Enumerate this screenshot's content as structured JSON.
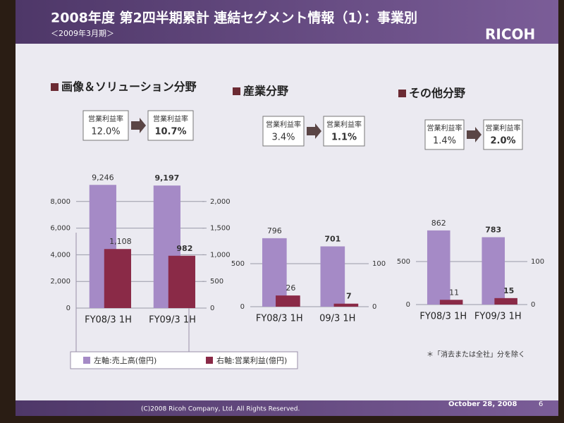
{
  "header": {
    "title": "2008年度 第2四半期累計 連結セグメント情報（1）：事業別",
    "subtitle": "＜2009年3月期＞",
    "logo": "RICOH"
  },
  "chart_data": [
    {
      "type": "bar",
      "title": "画像＆ソリューション分野",
      "margin": {
        "label": "営業利益率",
        "before": "12.0%",
        "after": "10.7%"
      },
      "categories": [
        "FY08/3 1H",
        "FY09/3 1H"
      ],
      "series": [
        {
          "name": "左軸:売上高(億円)",
          "color": "#a58ac6",
          "values": [
            9246,
            9197
          ],
          "value_labels": [
            "9,246",
            "9,197"
          ]
        },
        {
          "name": "右軸:営業利益(億円)",
          "color": "#8a2a47",
          "axis": "y2",
          "values": [
            1108,
            982
          ],
          "value_labels": [
            "1,108",
            "982"
          ]
        }
      ],
      "ylim": [
        0,
        10000
      ],
      "yticks": [
        0,
        {
          "value": 2000,
          "label": "2,000"
        },
        {
          "value": 4000,
          "label": "4,000"
        },
        {
          "value": 6000,
          "label": "6,000"
        },
        {
          "value": 8000,
          "label": "8,000"
        }
      ],
      "y2lim": [
        0,
        2500
      ],
      "y2ticks": [
        0,
        500,
        {
          "value": 1000,
          "label": "1,000"
        },
        {
          "value": 1500,
          "label": "1,500"
        },
        {
          "value": 2000,
          "label": "2,000"
        }
      ],
      "grid": true
    },
    {
      "type": "bar",
      "title": "産業分野",
      "margin": {
        "label": "営業利益率",
        "before": "3.4%",
        "after": "1.1%"
      },
      "categories": [
        "FY08/3 1H",
        "09/3 1H"
      ],
      "series": [
        {
          "color": "#a58ac6",
          "values": [
            796,
            701
          ]
        },
        {
          "color": "#8a2a47",
          "axis": "y2",
          "values": [
            26,
            7
          ]
        }
      ],
      "ylim": [
        0,
        1000
      ],
      "yticks": [
        0,
        500
      ],
      "y2lim": [
        0,
        200
      ],
      "y2ticks": [
        0,
        100
      ],
      "grid": true
    },
    {
      "type": "bar",
      "title": "その他分野",
      "margin": {
        "label": "営業利益率",
        "before": "1.4%",
        "after": "2.0%"
      },
      "categories": [
        "FY08/3 1H",
        "FY09/3 1H"
      ],
      "series": [
        {
          "color": "#a58ac6",
          "values": [
            862,
            783
          ]
        },
        {
          "color": "#8a2a47",
          "axis": "y2",
          "values": [
            11,
            15
          ]
        }
      ],
      "ylim": [
        0,
        1000
      ],
      "yticks": [
        0,
        500
      ],
      "y2lim": [
        0,
        200
      ],
      "y2ticks": [
        0,
        100
      ],
      "grid": true
    }
  ],
  "footnote": "＊「消去または全社」分を除く",
  "footer": {
    "copyright": "(C)2008 Ricoh Company, Ltd. All Rights Reserved.",
    "date": "October 28, 2008",
    "page": "6"
  }
}
